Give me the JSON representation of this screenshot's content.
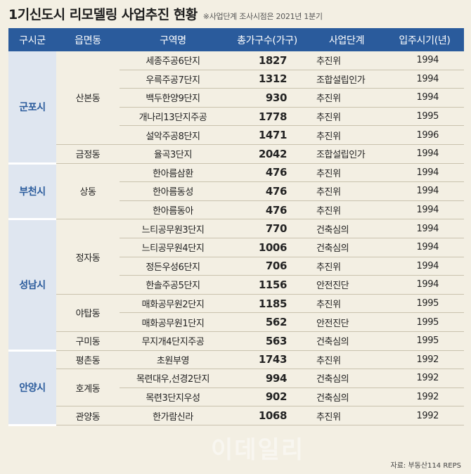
{
  "title": "1기신도시 리모델링 사업추진 현황",
  "note": "※사업단계 조사시점은 2021년 1분기",
  "headers": [
    "구시군",
    "읍면동",
    "구역명",
    "총가구수(가구)",
    "사업단계",
    "입주시기(년)"
  ],
  "rows": [
    {
      "city": "군포시",
      "dong": "산본동",
      "name": "세종주공6단지",
      "count": "1827",
      "stage": "추진위",
      "year": "1994"
    },
    {
      "name": "우륵주공7단지",
      "count": "1312",
      "stage": "조합설립인가",
      "year": "1994"
    },
    {
      "name": "백두한양9단지",
      "count": "930",
      "stage": "추진위",
      "year": "1994"
    },
    {
      "name": "개나리13단지주공",
      "count": "1778",
      "stage": "추진위",
      "year": "1995"
    },
    {
      "name": "설악주공8단지",
      "count": "1471",
      "stage": "추진위",
      "year": "1996"
    },
    {
      "dong": "금정동",
      "name": "율곡3단지",
      "count": "2042",
      "stage": "조합설립인가",
      "year": "1994"
    },
    {
      "city": "부천시",
      "dong": "상동",
      "name": "한아름삼환",
      "count": "476",
      "stage": "추진위",
      "year": "1994"
    },
    {
      "name": "한아름동성",
      "count": "476",
      "stage": "추진위",
      "year": "1994"
    },
    {
      "name": "한아름동아",
      "count": "476",
      "stage": "추진위",
      "year": "1994"
    },
    {
      "city": "성남시",
      "dong": "정자동",
      "name": "느티공무원3단지",
      "count": "770",
      "stage": "건축심의",
      "year": "1994"
    },
    {
      "name": "느티공무원4단지",
      "count": "1006",
      "stage": "건축심의",
      "year": "1994"
    },
    {
      "name": "정든우성6단지",
      "count": "706",
      "stage": "추진위",
      "year": "1994"
    },
    {
      "name": "한솔주공5단지",
      "count": "1156",
      "stage": "안전진단",
      "year": "1994"
    },
    {
      "dong": "야탑동",
      "name": "매화공무원2단지",
      "count": "1185",
      "stage": "추진위",
      "year": "1995"
    },
    {
      "name": "매화공무원1단지",
      "count": "562",
      "stage": "안전진단",
      "year": "1995"
    },
    {
      "dong": "구미동",
      "name": "무지개4단지주공",
      "count": "563",
      "stage": "건축심의",
      "year": "1995"
    },
    {
      "city": "안양시",
      "dong": "평촌동",
      "name": "초원부영",
      "count": "1743",
      "stage": "추진위",
      "year": "1992"
    },
    {
      "dong": "호계동",
      "name": "목련대우,선경2단지",
      "count": "994",
      "stage": "건축심의",
      "year": "1992"
    },
    {
      "name": "목련3단지우성",
      "count": "902",
      "stage": "건축심의",
      "year": "1992"
    },
    {
      "dong": "관양동",
      "name": "한가람신라",
      "count": "1068",
      "stage": "추진위",
      "year": "1992"
    }
  ],
  "source": "자료: 부동산114 REPS",
  "watermark": "이데일리"
}
